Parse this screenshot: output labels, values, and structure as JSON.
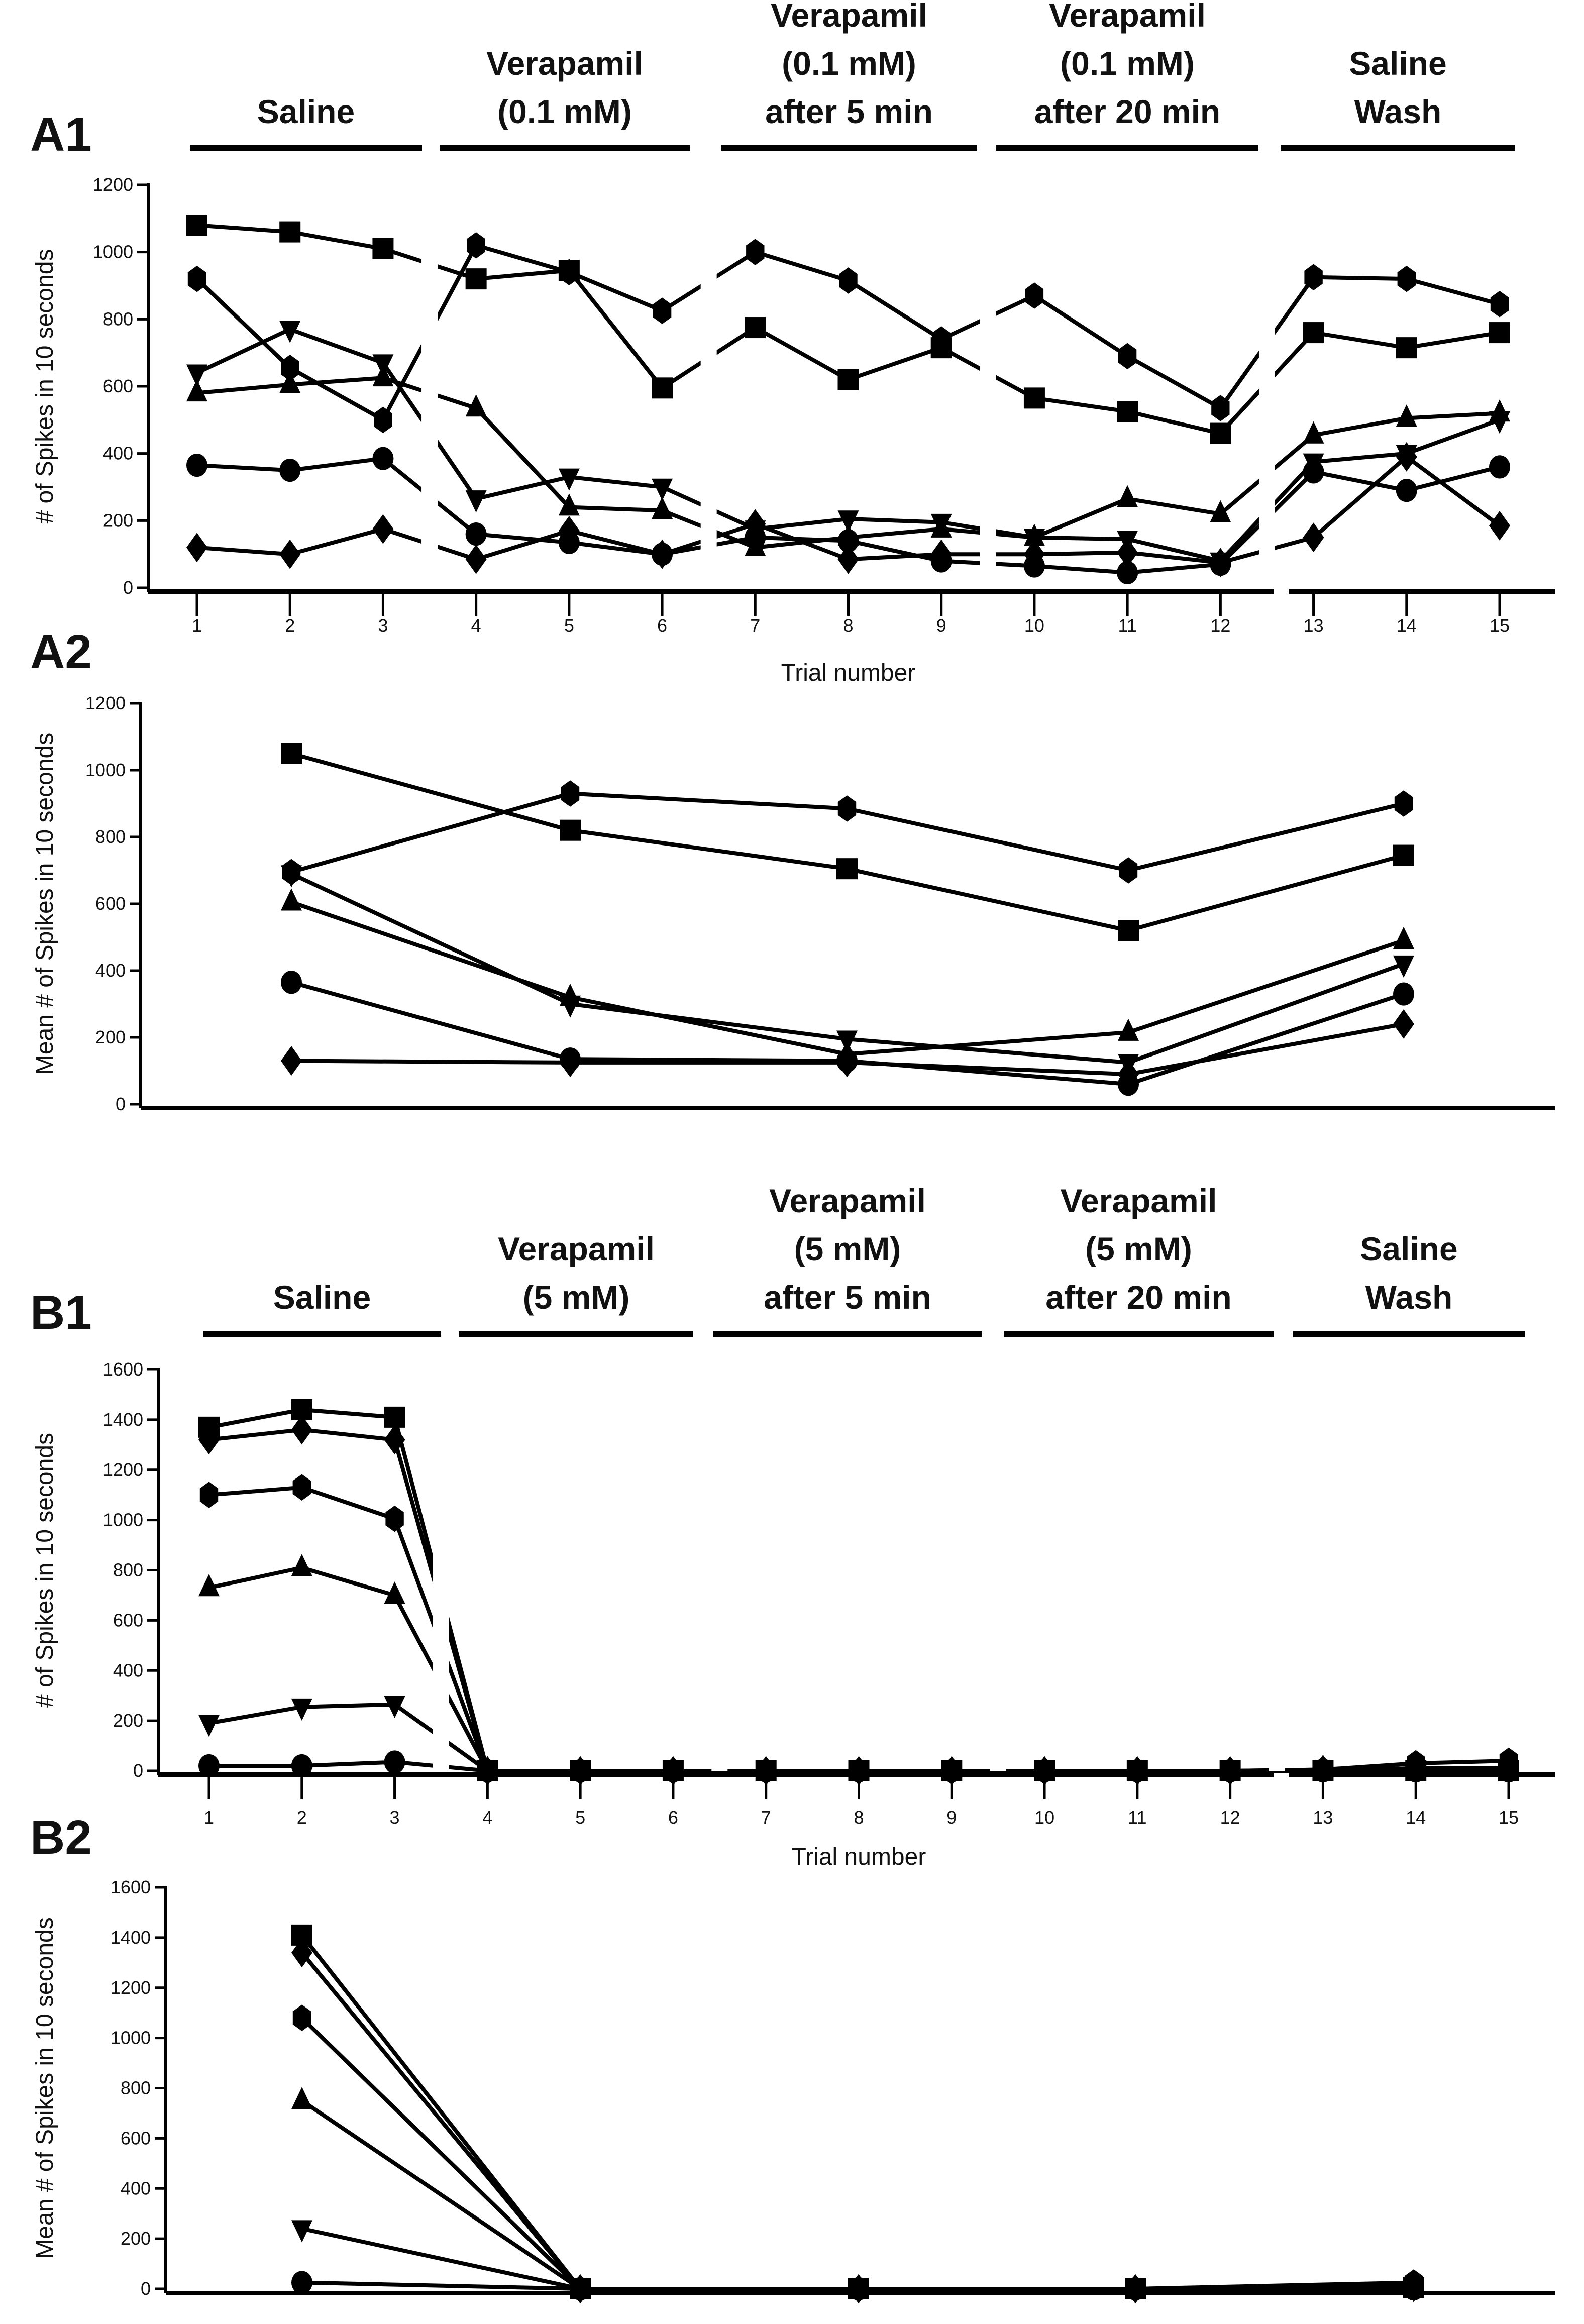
{
  "chart_data": [
    {
      "panel": "A1",
      "type": "line",
      "ylabel": "# of Spikes in 10 seconds",
      "xlabel": "Trial number",
      "ylim": [
        0,
        1200
      ],
      "yticks": [
        0,
        200,
        400,
        600,
        800,
        1000,
        1200
      ],
      "x": [
        1,
        2,
        3,
        4,
        5,
        6,
        7,
        8,
        9,
        10,
        11,
        12,
        13,
        14,
        15
      ],
      "xtick_labels": [
        "1",
        "2",
        "3",
        "4",
        "5",
        "6",
        "7",
        "8",
        "9",
        "10",
        "11",
        "12",
        "13",
        "14",
        "15"
      ],
      "groups": [
        {
          "lines": [
            "Saline"
          ],
          "trials": [
            1,
            3
          ]
        },
        {
          "lines": [
            "Verapamil",
            "(0.1 mM)"
          ],
          "trials": [
            4,
            6
          ]
        },
        {
          "lines": [
            "Verapamil",
            "(0.1 mM)",
            "after 5 min"
          ],
          "trials": [
            7,
            9
          ]
        },
        {
          "lines": [
            "Verapamil",
            "(0.1 mM)",
            "after 20 min"
          ],
          "trials": [
            10,
            12
          ]
        },
        {
          "lines": [
            "Saline",
            "Wash"
          ],
          "trials": [
            13,
            15
          ]
        }
      ],
      "series": [
        {
          "marker": "square",
          "values": [
            1080,
            1060,
            1010,
            920,
            945,
            595,
            775,
            620,
            715,
            565,
            525,
            460,
            760,
            715,
            760
          ]
        },
        {
          "marker": "hexagon",
          "values": [
            920,
            655,
            500,
            1020,
            940,
            825,
            1000,
            915,
            740,
            870,
            690,
            535,
            925,
            920,
            845
          ]
        },
        {
          "marker": "circle",
          "values": [
            365,
            350,
            385,
            160,
            135,
            100,
            150,
            140,
            80,
            65,
            45,
            70,
            345,
            290,
            360
          ]
        },
        {
          "marker": "triangle-up",
          "values": [
            580,
            605,
            625,
            535,
            240,
            230,
            120,
            150,
            175,
            150,
            265,
            220,
            455,
            505,
            520
          ]
        },
        {
          "marker": "triangle-down",
          "values": [
            640,
            770,
            670,
            265,
            330,
            300,
            175,
            205,
            195,
            150,
            145,
            80,
            375,
            400,
            500
          ]
        },
        {
          "marker": "diamond",
          "values": [
            120,
            100,
            175,
            85,
            170,
            100,
            190,
            85,
            100,
            100,
            105,
            75,
            150,
            390,
            185
          ]
        }
      ]
    },
    {
      "panel": "A2",
      "type": "line",
      "ylabel": "Mean # of Spikes in 10 seconds",
      "xlabel": "",
      "ylim": [
        0,
        1200
      ],
      "yticks": [
        0,
        200,
        400,
        600,
        800,
        1000,
        1200
      ],
      "x": [
        1,
        2,
        3,
        4,
        5
      ],
      "series": [
        {
          "marker": "square",
          "values": [
            1050,
            820,
            705,
            520,
            745
          ]
        },
        {
          "marker": "hexagon",
          "values": [
            695,
            930,
            885,
            700,
            900
          ]
        },
        {
          "marker": "circle",
          "values": [
            365,
            135,
            130,
            60,
            330
          ]
        },
        {
          "marker": "triangle-up",
          "values": [
            605,
            320,
            150,
            215,
            490
          ]
        },
        {
          "marker": "triangle-down",
          "values": [
            690,
            300,
            195,
            125,
            420
          ]
        },
        {
          "marker": "diamond",
          "values": [
            130,
            125,
            125,
            90,
            240
          ]
        }
      ]
    },
    {
      "panel": "B1",
      "type": "line",
      "ylabel": "# of Spikes in 10 seconds",
      "xlabel": "Trial number",
      "ylim": [
        0,
        1600
      ],
      "yticks": [
        0,
        200,
        400,
        600,
        800,
        1000,
        1200,
        1400,
        1600
      ],
      "x": [
        1,
        2,
        3,
        4,
        5,
        6,
        7,
        8,
        9,
        10,
        11,
        12,
        13,
        14,
        15
      ],
      "xtick_labels": [
        "1",
        "2",
        "3",
        "4",
        "5",
        "6",
        "7",
        "8",
        "9",
        "10",
        "11",
        "12",
        "13",
        "14",
        "15"
      ],
      "groups": [
        {
          "lines": [
            "Saline"
          ],
          "trials": [
            1,
            3
          ]
        },
        {
          "lines": [
            "Verapamil",
            "(5 mM)"
          ],
          "trials": [
            4,
            6
          ]
        },
        {
          "lines": [
            "Verapamil",
            "(5 mM)",
            "after 5 min"
          ],
          "trials": [
            7,
            9
          ]
        },
        {
          "lines": [
            "Verapamil",
            "(5 mM)",
            "after 20 min"
          ],
          "trials": [
            10,
            12
          ]
        },
        {
          "lines": [
            "Saline",
            "Wash"
          ],
          "trials": [
            13,
            15
          ]
        }
      ],
      "series": [
        {
          "marker": "square",
          "values": [
            1370,
            1440,
            1410,
            0,
            0,
            0,
            0,
            0,
            0,
            0,
            0,
            0,
            0,
            0,
            0
          ]
        },
        {
          "marker": "diamond",
          "values": [
            1320,
            1360,
            1320,
            0,
            0,
            0,
            0,
            0,
            0,
            0,
            0,
            0,
            5,
            10,
            10
          ]
        },
        {
          "marker": "hexagon",
          "values": [
            1100,
            1130,
            1005,
            0,
            0,
            0,
            0,
            0,
            0,
            0,
            0,
            0,
            5,
            30,
            40
          ]
        },
        {
          "marker": "triangle-up",
          "values": [
            730,
            810,
            700,
            0,
            0,
            0,
            0,
            0,
            0,
            0,
            0,
            0,
            0,
            0,
            0
          ]
        },
        {
          "marker": "triangle-down",
          "values": [
            190,
            255,
            265,
            0,
            0,
            0,
            0,
            0,
            0,
            0,
            0,
            0,
            0,
            0,
            0
          ]
        },
        {
          "marker": "circle",
          "values": [
            20,
            20,
            35,
            0,
            0,
            0,
            0,
            0,
            0,
            0,
            0,
            0,
            0,
            0,
            0
          ]
        }
      ]
    },
    {
      "panel": "B2",
      "type": "line",
      "ylabel": "Mean # of Spikes in 10 seconds",
      "xlabel": "",
      "ylim": [
        0,
        1600
      ],
      "yticks": [
        0,
        200,
        400,
        600,
        800,
        1000,
        1200,
        1400,
        1600
      ],
      "x": [
        1,
        2,
        3,
        4,
        5
      ],
      "series": [
        {
          "marker": "square",
          "values": [
            1410,
            0,
            0,
            0,
            5
          ]
        },
        {
          "marker": "diamond",
          "values": [
            1340,
            0,
            0,
            0,
            10
          ]
        },
        {
          "marker": "hexagon",
          "values": [
            1080,
            0,
            0,
            0,
            25
          ]
        },
        {
          "marker": "triangle-up",
          "values": [
            750,
            0,
            0,
            0,
            0
          ]
        },
        {
          "marker": "triangle-down",
          "values": [
            240,
            0,
            0,
            0,
            0
          ]
        },
        {
          "marker": "circle",
          "values": [
            25,
            0,
            0,
            0,
            0
          ]
        }
      ]
    }
  ]
}
